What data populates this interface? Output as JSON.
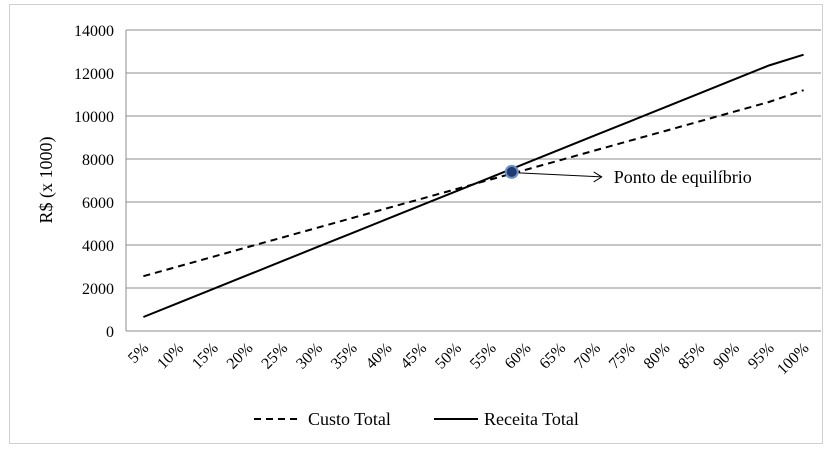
{
  "chart_data": {
    "type": "line",
    "title": "",
    "xlabel": "",
    "ylabel": "R$ (x 1000)",
    "ylim": [
      0,
      14000
    ],
    "yticks": [
      0,
      2000,
      4000,
      6000,
      8000,
      10000,
      12000,
      14000
    ],
    "grid": "horizontal",
    "categories": [
      "5%",
      "10%",
      "15%",
      "20%",
      "25%",
      "30%",
      "35%",
      "40%",
      "45%",
      "50%",
      "55%",
      "60%",
      "65%",
      "70%",
      "75%",
      "80%",
      "85%",
      "90%",
      "95%",
      "100%"
    ],
    "series": [
      {
        "name": "Custo Total",
        "style": "dashed",
        "color": "#000000",
        "values": [
          2550,
          3000,
          3450,
          3900,
          4350,
          4800,
          5250,
          5700,
          6150,
          6600,
          7050,
          7500,
          7950,
          8400,
          8850,
          9300,
          9750,
          10200,
          10650,
          11200
        ]
      },
      {
        "name": "Receita Total",
        "style": "solid",
        "color": "#000000",
        "values": [
          650,
          1300,
          1950,
          2600,
          3250,
          3900,
          4550,
          5200,
          5850,
          6500,
          7150,
          7800,
          8450,
          9100,
          9750,
          10400,
          11050,
          11700,
          12350,
          12850
        ]
      }
    ],
    "annotation": {
      "text": "Ponto de equilíbrio",
      "x_category_index": 10.6,
      "y": 7400,
      "marker_color": "#1f3a6e"
    },
    "legend_position": "bottom"
  }
}
